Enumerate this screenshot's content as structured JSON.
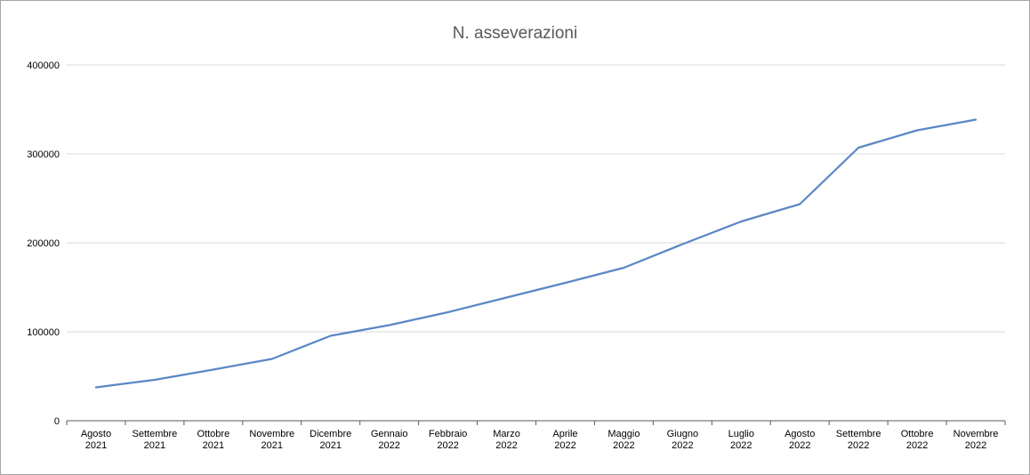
{
  "chart_data": {
    "type": "line",
    "title": "N. asseverazioni",
    "categories": [
      [
        "Agosto",
        "2021"
      ],
      [
        "Settembre",
        "2021"
      ],
      [
        "Ottobre",
        "2021"
      ],
      [
        "Novembre",
        "2021"
      ],
      [
        "Dicembre",
        "2021"
      ],
      [
        "Gennaio",
        "2022"
      ],
      [
        "Febbraio",
        "2022"
      ],
      [
        "Marzo",
        "2022"
      ],
      [
        "Aprile",
        "2022"
      ],
      [
        "Maggio",
        "2022"
      ],
      [
        "Giugno",
        "2022"
      ],
      [
        "Luglio",
        "2022"
      ],
      [
        "Agosto",
        "2022"
      ],
      [
        "Settembre",
        "2022"
      ],
      [
        "Ottobre",
        "2022"
      ],
      [
        "Novembre",
        "2022"
      ]
    ],
    "series": [
      {
        "values": [
          37500,
          46000,
          57500,
          69500,
          95500,
          107500,
          122000,
          138500,
          155000,
          172000,
          198500,
          224000,
          243500,
          307000,
          326500,
          338500
        ],
        "color": "#5b87c5"
      }
    ],
    "yticks": [
      0,
      100000,
      200000,
      300000,
      400000
    ],
    "ylim": [
      0,
      400000
    ],
    "grid": true,
    "legend": "none"
  }
}
